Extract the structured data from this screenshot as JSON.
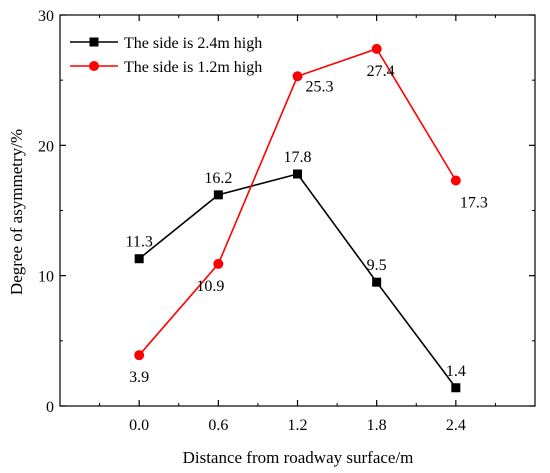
{
  "chart_data": {
    "type": "line",
    "xlabel": "Distance from roadway surface/m",
    "ylabel": "Degree of asymmetry/%",
    "xlim": [
      -0.6,
      3.0
    ],
    "ylim": [
      0,
      30
    ],
    "x_ticks": [
      "0.0",
      "0.6",
      "1.2",
      "1.8",
      "2.4"
    ],
    "y_ticks": [
      "0",
      "10",
      "20",
      "30"
    ],
    "grid": false,
    "legend_position": "top-left",
    "x": [
      0.0,
      0.6,
      1.2,
      1.8,
      2.4
    ],
    "series": [
      {
        "name": "The side is 2.4m high",
        "color": "#000000",
        "marker": "square",
        "values": [
          11.3,
          16.2,
          17.8,
          9.5,
          1.4
        ],
        "labels": [
          "11.3",
          "16.2",
          "17.8",
          "9.5",
          "1.4"
        ]
      },
      {
        "name": "The side is 1.2m high",
        "color": "#ff0000",
        "marker": "circle",
        "values": [
          3.9,
          10.9,
          25.3,
          27.4,
          17.3
        ],
        "labels": [
          "3.9",
          "10.9",
          "25.3",
          "27.4",
          "17.3"
        ]
      }
    ]
  }
}
